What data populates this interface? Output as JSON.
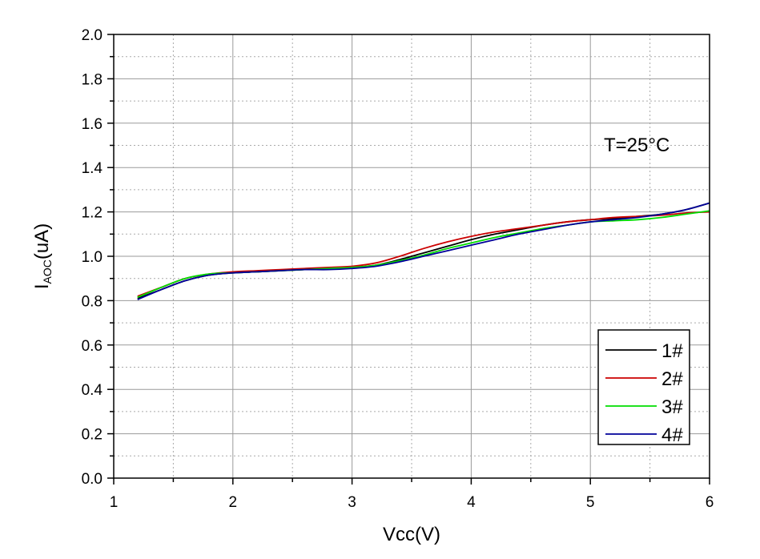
{
  "chart_data": {
    "type": "line",
    "xlabel": "Vcc(V)",
    "ylabel_main": "I",
    "ylabel_sub": "AOC",
    "ylabel_tail": "(uA)",
    "annotation": "T=25°C",
    "xlim": [
      1,
      6
    ],
    "ylim": [
      0.0,
      2.0
    ],
    "x_ticks": [
      "1",
      "2",
      "3",
      "4",
      "5",
      "6"
    ],
    "y_ticks": [
      "0.0",
      "0.2",
      "0.4",
      "0.6",
      "0.8",
      "1.0",
      "1.2",
      "1.4",
      "1.6",
      "1.8",
      "2.0"
    ],
    "grid": true,
    "legend_position": "bottom-right",
    "x": [
      1.2,
      1.4,
      1.6,
      1.8,
      2.0,
      2.2,
      2.4,
      2.6,
      2.8,
      3.0,
      3.2,
      3.4,
      3.6,
      3.8,
      4.0,
      4.2,
      4.4,
      4.6,
      4.8,
      5.0,
      5.2,
      5.4,
      5.6,
      5.8,
      6.0
    ],
    "series": [
      {
        "name": "1#",
        "color": "#000000",
        "values": [
          0.81,
          0.85,
          0.89,
          0.915,
          0.925,
          0.93,
          0.935,
          0.94,
          0.945,
          0.95,
          0.96,
          0.985,
          1.015,
          1.045,
          1.075,
          1.1,
          1.12,
          1.14,
          1.155,
          1.165,
          1.17,
          1.18,
          1.19,
          1.21,
          1.24
        ]
      },
      {
        "name": "2#",
        "color": "#cc0000",
        "values": [
          0.82,
          0.86,
          0.9,
          0.92,
          0.93,
          0.935,
          0.94,
          0.945,
          0.95,
          0.955,
          0.97,
          1.0,
          1.035,
          1.065,
          1.09,
          1.11,
          1.125,
          1.14,
          1.155,
          1.165,
          1.175,
          1.18,
          1.185,
          1.195,
          1.2
        ]
      },
      {
        "name": "3#",
        "color": "#00dd00",
        "values": [
          0.815,
          0.86,
          0.9,
          0.92,
          0.925,
          0.93,
          0.935,
          0.94,
          0.945,
          0.95,
          0.96,
          0.98,
          1.005,
          1.035,
          1.06,
          1.085,
          1.105,
          1.125,
          1.14,
          1.155,
          1.16,
          1.165,
          1.175,
          1.19,
          1.205
        ]
      },
      {
        "name": "4#",
        "color": "#000099",
        "values": [
          0.805,
          0.85,
          0.89,
          0.915,
          0.925,
          0.93,
          0.935,
          0.94,
          0.94,
          0.945,
          0.955,
          0.975,
          1.0,
          1.025,
          1.05,
          1.075,
          1.1,
          1.12,
          1.14,
          1.155,
          1.165,
          1.175,
          1.19,
          1.21,
          1.24
        ]
      }
    ]
  }
}
